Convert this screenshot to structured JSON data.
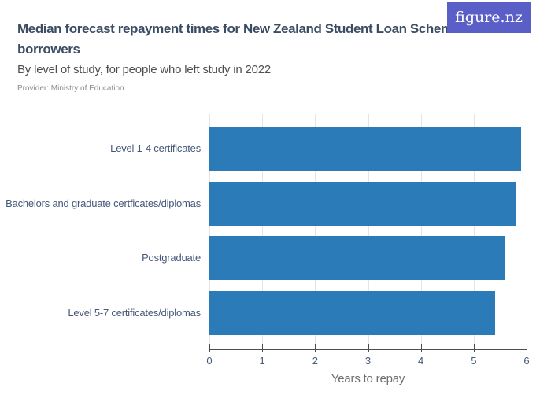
{
  "brand": {
    "logo_text": "figure.nz",
    "logo_bg_color": "#5a5fc7",
    "logo_text_color": "#ffffff"
  },
  "header": {
    "title": "Median forecast repayment times for New Zealand Student Loan Scheme borrowers",
    "subtitle": "By level of study, for people who left study in 2022",
    "provider": "Provider: Ministry of Education"
  },
  "chart_data": {
    "type": "bar",
    "orientation": "horizontal",
    "title": "Median forecast repayment times for New Zealand Student Loan Scheme borrowers",
    "subtitle": "By level of study, for people who left study in 2022",
    "categories": [
      "Level 1-4 certificates",
      "Bachelors and graduate certficates/diplomas",
      "Postgraduate",
      "Level 5-7 certificates/diplomas"
    ],
    "values": [
      5.9,
      5.8,
      5.6,
      5.4
    ],
    "xlabel": "Years to repay",
    "ylabel": "",
    "xlim": [
      0,
      6
    ],
    "xticks": [
      0,
      1,
      2,
      3,
      4,
      5,
      6
    ],
    "grid": true,
    "legend": "none",
    "colors": {
      "bar": "#2b7bb8",
      "gridline": "#e4e4e4",
      "axis_line": "#4d4d4d",
      "tick_label": "#44587a",
      "category_label": "#44587a",
      "axis_title": "#6e6e6e"
    }
  }
}
